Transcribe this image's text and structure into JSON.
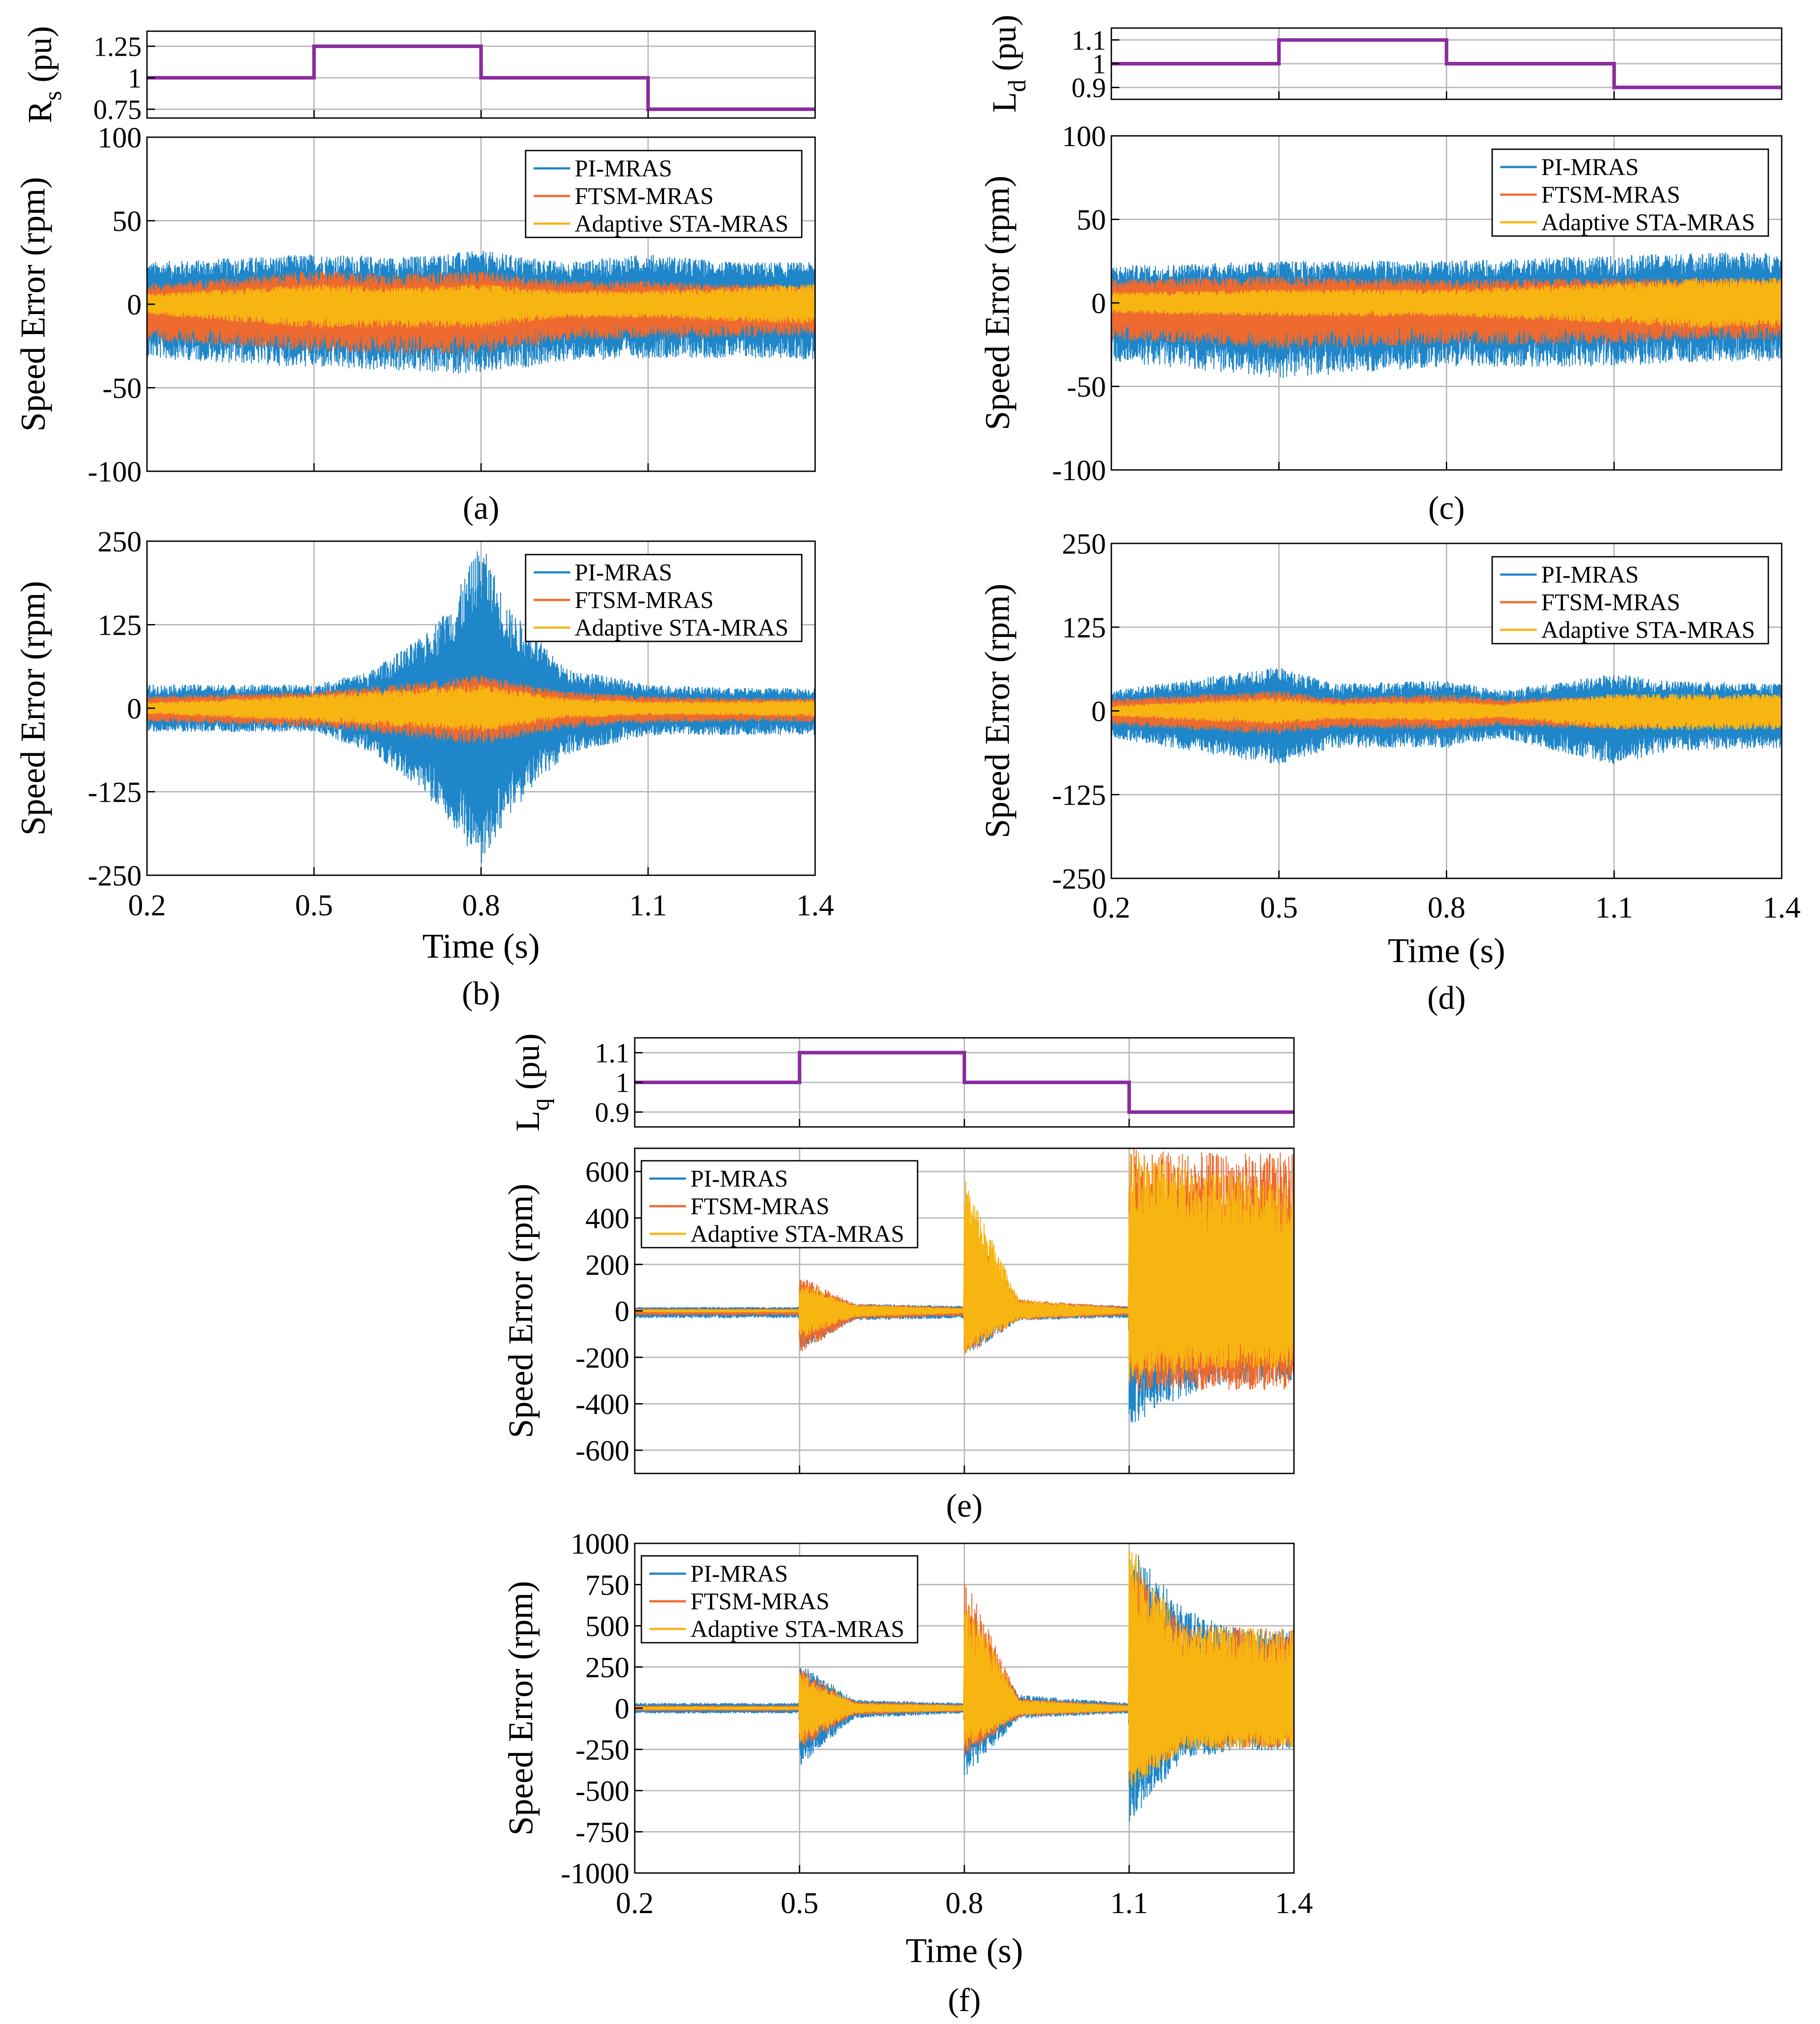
{
  "colors": {
    "pi": "#1f86c9",
    "ftsm": "#ef6a2e",
    "sta": "#f7b512",
    "param": "#8a2d9e",
    "grid": "#b8b8b8",
    "axis": "#000000"
  },
  "legend_labels": [
    "PI-MRAS",
    "FTSM-MRAS",
    "Adaptive STA-MRAS"
  ],
  "chart_data": [
    {
      "id": "a-param",
      "type": "line",
      "ylabel": "R",
      "ylabel_sub": "s",
      "ylabel_unit": "(pu)",
      "xlim": [
        0.2,
        1.4
      ],
      "ylim": [
        0.68,
        1.37
      ],
      "yticks": [
        "1.25",
        "1",
        "0.75"
      ],
      "ytick_values": [
        1.25,
        1.0,
        0.75
      ],
      "xticks": [
        0.5,
        0.8,
        1.1
      ],
      "series": [
        {
          "x": [
            0.2,
            0.5,
            0.5,
            0.8,
            0.8,
            1.1,
            1.1,
            1.4
          ],
          "y": [
            1.0,
            1.0,
            1.25,
            1.25,
            1.0,
            1.0,
            0.75,
            0.75
          ]
        }
      ]
    },
    {
      "id": "a",
      "type": "line",
      "ylabel": "Speed Error (rpm)",
      "xlabel": "",
      "caption": "(a)",
      "xlim": [
        0.2,
        1.4
      ],
      "ylim": [
        -100,
        100
      ],
      "yticks": [
        "100",
        "50",
        "0",
        "-50",
        "-100"
      ],
      "ytick_values": [
        100,
        50,
        0,
        -50,
        -100
      ],
      "xticks": [
        0.5,
        0.8,
        1.1
      ],
      "legend": [
        "PI-MRAS",
        "FTSM-MRAS",
        "Adaptive STA-MRAS"
      ],
      "series": [
        {
          "name": "PI-MRAS",
          "x": [
            0.2,
            0.5,
            0.65,
            0.8,
            0.95,
            1.1,
            1.25,
            1.4
          ],
          "max": [
            25,
            30,
            28,
            32,
            25,
            30,
            25,
            25
          ],
          "min": [
            -32,
            -38,
            -40,
            -42,
            -34,
            -32,
            -32,
            -33
          ]
        },
        {
          "name": "FTSM-MRAS",
          "x": [
            0.2,
            0.5,
            0.65,
            0.8,
            0.95,
            1.1,
            1.25,
            1.4
          ],
          "max": [
            12,
            20,
            18,
            20,
            14,
            14,
            12,
            12
          ],
          "min": [
            -22,
            -28,
            -30,
            -30,
            -22,
            -20,
            -20,
            -18
          ]
        },
        {
          "name": "Adaptive STA-MRAS",
          "x": [
            0.2,
            0.5,
            0.65,
            0.8,
            0.95,
            1.1,
            1.25,
            1.4
          ],
          "max": [
            6,
            12,
            10,
            12,
            8,
            8,
            10,
            12
          ],
          "min": [
            -6,
            -14,
            -14,
            -14,
            -8,
            -8,
            -10,
            -12
          ]
        }
      ]
    },
    {
      "id": "b",
      "type": "line",
      "ylabel": "Speed Error (rpm)",
      "xlabel": "Time (s)",
      "caption": "(b)",
      "xlim": [
        0.2,
        1.4
      ],
      "ylim": [
        -250,
        250
      ],
      "yticks": [
        "250",
        "125",
        "0",
        "-125",
        "-250"
      ],
      "ytick_values": [
        250,
        125,
        0,
        -125,
        -250
      ],
      "xticks": [
        0.5,
        0.8,
        1.1
      ],
      "xticklabels": [
        "0.2",
        "0.5",
        "0.8",
        "1.1",
        "1.4"
      ],
      "legend": [
        "PI-MRAS",
        "FTSM-MRAS",
        "Adaptive STA-MRAS"
      ],
      "series": [
        {
          "name": "PI-MRAS",
          "x": [
            0.2,
            0.5,
            0.6,
            0.7,
            0.75,
            0.8,
            0.85,
            0.95,
            1.1,
            1.25,
            1.4
          ],
          "max": [
            35,
            35,
            55,
            110,
            160,
            250,
            150,
            60,
            35,
            30,
            30
          ],
          "min": [
            -35,
            -35,
            -65,
            -130,
            -180,
            -235,
            -160,
            -70,
            -40,
            -40,
            -40
          ]
        },
        {
          "name": "FTSM-MRAS",
          "x": [
            0.2,
            0.5,
            0.65,
            0.8,
            0.95,
            1.1,
            1.25,
            1.4
          ],
          "max": [
            18,
            25,
            35,
            50,
            25,
            18,
            15,
            15
          ],
          "min": [
            -20,
            -28,
            -40,
            -55,
            -30,
            -22,
            -20,
            -20
          ]
        },
        {
          "name": "Adaptive STA-MRAS",
          "x": [
            0.2,
            0.5,
            0.65,
            0.8,
            0.95,
            1.1,
            1.25,
            1.4
          ],
          "max": [
            8,
            20,
            28,
            35,
            15,
            10,
            10,
            12
          ],
          "min": [
            -8,
            -20,
            -28,
            -35,
            -15,
            -10,
            -10,
            -12
          ]
        }
      ]
    },
    {
      "id": "c-param",
      "type": "line",
      "ylabel": "L",
      "ylabel_sub": "d",
      "ylabel_unit": "(pu)",
      "xlim": [
        0.2,
        1.4
      ],
      "ylim": [
        0.85,
        1.15
      ],
      "yticks": [
        "1.1",
        "1",
        "0.9"
      ],
      "ytick_values": [
        1.1,
        1.0,
        0.9
      ],
      "xticks": [
        0.5,
        0.8,
        1.1
      ],
      "series": [
        {
          "x": [
            0.2,
            0.5,
            0.5,
            0.8,
            0.8,
            1.1,
            1.1,
            1.4
          ],
          "y": [
            1.0,
            1.0,
            1.1,
            1.1,
            1.0,
            1.0,
            0.9,
            0.9
          ]
        }
      ]
    },
    {
      "id": "c",
      "type": "line",
      "ylabel": "Speed Error (rpm)",
      "xlabel": "",
      "caption": "(c)",
      "xlim": [
        0.2,
        1.4
      ],
      "ylim": [
        -100,
        100
      ],
      "yticks": [
        "100",
        "50",
        "0",
        "-50",
        "-100"
      ],
      "ytick_values": [
        100,
        50,
        0,
        -50,
        -100
      ],
      "xticks": [
        0.5,
        0.8,
        1.1
      ],
      "legend": [
        "PI-MRAS",
        "FTSM-MRAS",
        "Adaptive STA-MRAS"
      ],
      "series": [
        {
          "name": "PI-MRAS",
          "x": [
            0.2,
            0.5,
            0.8,
            1.1,
            1.25,
            1.4
          ],
          "max": [
            22,
            25,
            25,
            28,
            30,
            30
          ],
          "min": [
            -35,
            -45,
            -38,
            -38,
            -35,
            -35
          ]
        },
        {
          "name": "FTSM-MRAS",
          "x": [
            0.2,
            0.5,
            0.8,
            1.1,
            1.25,
            1.4
          ],
          "max": [
            14,
            16,
            14,
            15,
            15,
            15
          ],
          "min": [
            -22,
            -28,
            -25,
            -25,
            -22,
            -22
          ]
        },
        {
          "name": "Adaptive STA-MRAS",
          "x": [
            0.2,
            0.5,
            0.8,
            1.1,
            1.25,
            1.4
          ],
          "max": [
            6,
            8,
            8,
            12,
            15,
            15
          ],
          "min": [
            -6,
            -8,
            -8,
            -12,
            -15,
            -15
          ]
        }
      ]
    },
    {
      "id": "d",
      "type": "line",
      "ylabel": "Speed Error (rpm)",
      "xlabel": "Time (s)",
      "caption": "(d)",
      "xlim": [
        0.2,
        1.4
      ],
      "ylim": [
        -250,
        250
      ],
      "yticks": [
        "250",
        "125",
        "0",
        "-125",
        "-250"
      ],
      "ytick_values": [
        250,
        125,
        0,
        -125,
        -250
      ],
      "xticks": [
        0.5,
        0.8,
        1.1
      ],
      "xticklabels": [
        "0.2",
        "0.5",
        "0.8",
        "1.1",
        "1.4"
      ],
      "legend": [
        "PI-MRAS",
        "FTSM-MRAS",
        "Adaptive STA-MRAS"
      ],
      "series": [
        {
          "name": "PI-MRAS",
          "x": [
            0.2,
            0.5,
            0.6,
            0.8,
            0.9,
            1.1,
            1.2,
            1.4
          ],
          "max": [
            30,
            65,
            40,
            45,
            30,
            55,
            45,
            40
          ],
          "min": [
            -40,
            -80,
            -55,
            -55,
            -40,
            -80,
            -60,
            -55
          ]
        },
        {
          "name": "FTSM-MRAS",
          "x": [
            0.2,
            0.5,
            0.6,
            0.8,
            0.9,
            1.1,
            1.2,
            1.4
          ],
          "max": [
            18,
            30,
            20,
            25,
            18,
            22,
            20,
            20
          ],
          "min": [
            -22,
            -35,
            -25,
            -28,
            -22,
            -28,
            -25,
            -22
          ]
        },
        {
          "name": "Adaptive STA-MRAS",
          "x": [
            0.2,
            0.5,
            0.6,
            0.8,
            0.9,
            1.1,
            1.2,
            1.4
          ],
          "max": [
            8,
            20,
            12,
            15,
            10,
            25,
            25,
            25
          ],
          "min": [
            -8,
            -20,
            -12,
            -15,
            -10,
            -28,
            -28,
            -28
          ]
        }
      ]
    },
    {
      "id": "e-param",
      "type": "line",
      "ylabel": "L",
      "ylabel_sub": "q",
      "ylabel_unit": "(pu)",
      "xlim": [
        0.2,
        1.4
      ],
      "ylim": [
        0.85,
        1.15
      ],
      "yticks": [
        "1.1",
        "1",
        "0.9"
      ],
      "ytick_values": [
        1.1,
        1.0,
        0.9
      ],
      "xticks": [
        0.5,
        0.8,
        1.1
      ],
      "series": [
        {
          "x": [
            0.2,
            0.5,
            0.5,
            0.8,
            0.8,
            1.1,
            1.1,
            1.4
          ],
          "y": [
            1.0,
            1.0,
            1.1,
            1.1,
            1.0,
            1.0,
            0.9,
            0.9
          ]
        }
      ]
    },
    {
      "id": "e",
      "type": "line",
      "ylabel": "Speed Error (rpm)",
      "xlabel": "",
      "caption": "(e)",
      "xlim": [
        0.2,
        1.4
      ],
      "ylim": [
        -700,
        700
      ],
      "yticks": [
        "600",
        "400",
        "200",
        "0",
        "-200",
        "-400",
        "-600"
      ],
      "ytick_values": [
        600,
        400,
        200,
        0,
        -200,
        -400,
        -600
      ],
      "xticks": [
        0.5,
        0.8,
        1.1
      ],
      "legend": [
        "PI-MRAS",
        "FTSM-MRAS",
        "Adaptive STA-MRAS"
      ],
      "series": [
        {
          "name": "PI-MRAS",
          "x": [
            0.2,
            0.499,
            0.5,
            0.6,
            0.799,
            0.8,
            0.9,
            1.099,
            1.1,
            1.15,
            1.25,
            1.4
          ],
          "max": [
            15,
            15,
            120,
            30,
            20,
            300,
            40,
            20,
            500,
            450,
            420,
            400
          ],
          "min": [
            -30,
            -30,
            -170,
            -40,
            -30,
            -200,
            -40,
            -30,
            -500,
            -420,
            -320,
            -300
          ]
        },
        {
          "name": "FTSM-MRAS",
          "x": [
            0.2,
            0.499,
            0.5,
            0.6,
            0.799,
            0.8,
            0.9,
            1.099,
            1.1,
            1.25,
            1.4
          ],
          "max": [
            8,
            8,
            150,
            30,
            15,
            400,
            50,
            15,
            700,
            680,
            680
          ],
          "min": [
            -18,
            -18,
            -190,
            -35,
            -20,
            -200,
            -40,
            -20,
            -350,
            -340,
            -340
          ]
        },
        {
          "name": "Adaptive STA-MRAS",
          "x": [
            0.2,
            0.499,
            0.5,
            0.6,
            0.799,
            0.8,
            0.9,
            1.099,
            1.1,
            1.25,
            1.4
          ],
          "max": [
            5,
            5,
            120,
            25,
            10,
            580,
            45,
            10,
            700,
            600,
            560
          ],
          "min": [
            -5,
            -5,
            -120,
            -25,
            -10,
            -180,
            -35,
            -10,
            -300,
            -250,
            -250
          ]
        }
      ]
    },
    {
      "id": "f",
      "type": "line",
      "ylabel": "Speed Error (rpm)",
      "xlabel": "Time (s)",
      "caption": "(f)",
      "xlim": [
        0.2,
        1.4
      ],
      "ylim": [
        -1000,
        1000
      ],
      "yticks": [
        "1000",
        "750",
        "500",
        "250",
        "0",
        "-250",
        "-500",
        "-750",
        "-1000"
      ],
      "ytick_values": [
        1000,
        750,
        500,
        250,
        0,
        -250,
        -500,
        -750,
        -1000
      ],
      "xticks": [
        0.5,
        0.8,
        1.1
      ],
      "xticklabels": [
        "0.2",
        "0.5",
        "0.8",
        "1.1",
        "1.4"
      ],
      "legend": [
        "PI-MRAS",
        "FTSM-MRAS",
        "Adaptive STA-MRAS"
      ],
      "series": [
        {
          "name": "PI-MRAS",
          "x": [
            0.2,
            0.499,
            0.5,
            0.6,
            0.799,
            0.8,
            0.9,
            1.099,
            1.1,
            1.2,
            1.3,
            1.4
          ],
          "max": [
            30,
            30,
            280,
            50,
            30,
            520,
            80,
            30,
            1000,
            600,
            480,
            480
          ],
          "min": [
            -30,
            -30,
            -360,
            -60,
            -30,
            -420,
            -60,
            -30,
            -700,
            -300,
            -260,
            -250
          ]
        },
        {
          "name": "FTSM-MRAS",
          "x": [
            0.2,
            0.499,
            0.5,
            0.6,
            0.799,
            0.8,
            0.9,
            1.099,
            1.1,
            1.2,
            1.4
          ],
          "max": [
            15,
            15,
            250,
            40,
            20,
            800,
            60,
            20,
            900,
            500,
            480
          ],
          "min": [
            -15,
            -15,
            -250,
            -40,
            -20,
            -300,
            -50,
            -20,
            -450,
            -250,
            -240
          ]
        },
        {
          "name": "Adaptive STA-MRAS",
          "x": [
            0.2,
            0.499,
            0.5,
            0.6,
            0.799,
            0.8,
            0.9,
            1.099,
            1.1,
            1.2,
            1.4
          ],
          "max": [
            8,
            8,
            220,
            30,
            15,
            700,
            50,
            15,
            1000,
            500,
            480
          ],
          "min": [
            -8,
            -8,
            -220,
            -30,
            -15,
            -250,
            -40,
            -15,
            -500,
            -250,
            -240
          ]
        }
      ]
    }
  ]
}
